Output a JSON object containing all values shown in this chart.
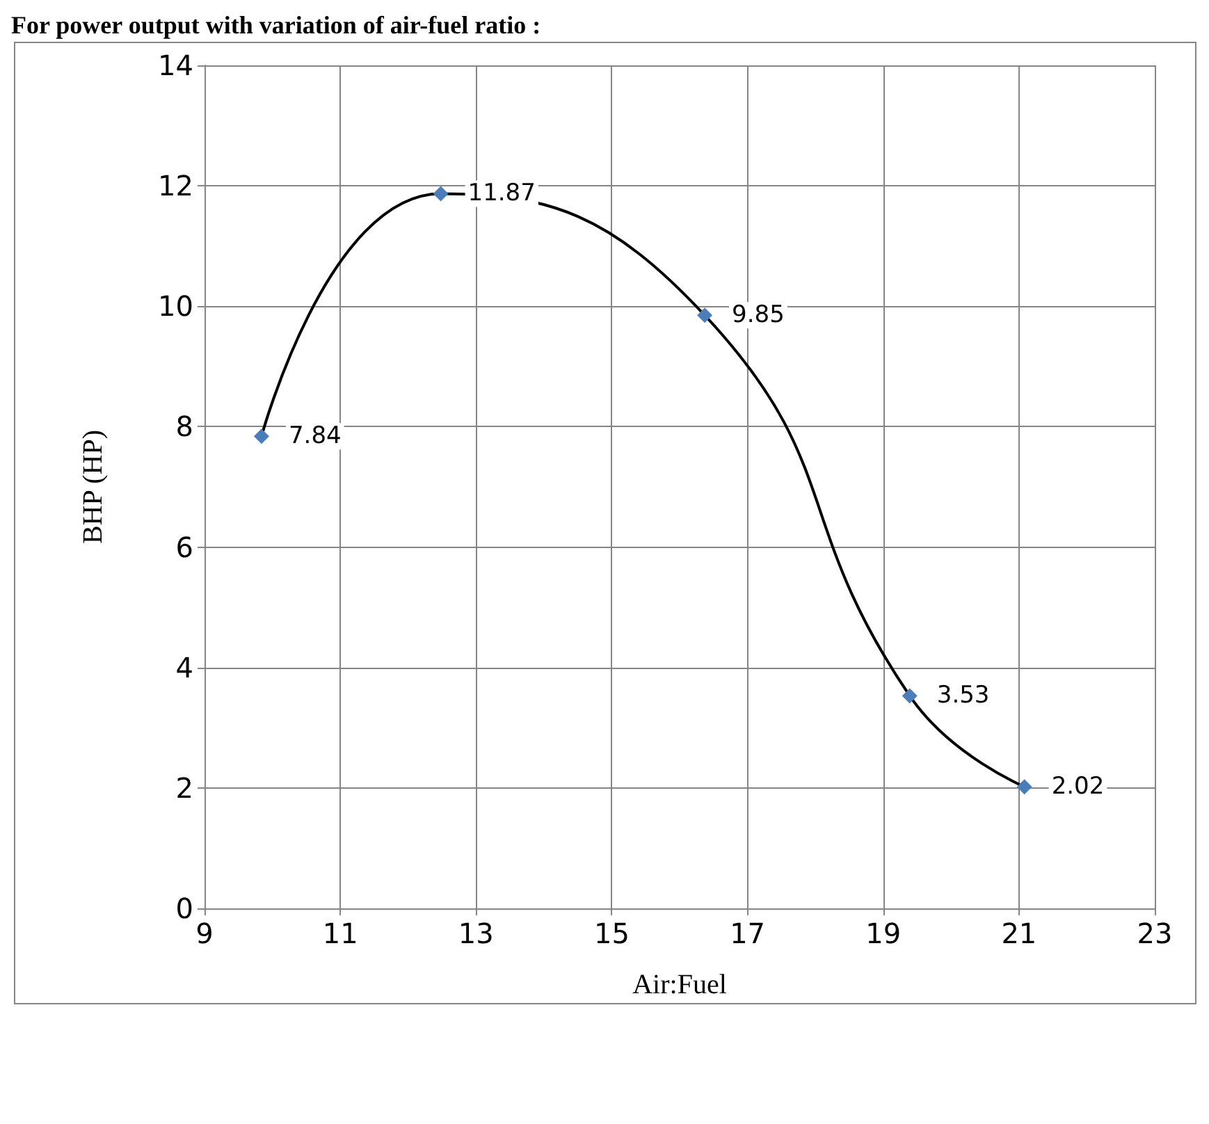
{
  "chart_data": {
    "type": "line",
    "title": "For power output with variation of air-fuel ratio :",
    "xlabel": "Air:Fuel",
    "ylabel": "BHP (HP)",
    "x": [
      9.84,
      12.48,
      16.37,
      19.39,
      21.08
    ],
    "series": [
      {
        "color": "#4a7ebb",
        "values": [
          7.84,
          11.87,
          9.85,
          3.53,
          2.02
        ]
      }
    ],
    "xlim": [
      9,
      23
    ],
    "xticks": [
      9,
      11,
      13,
      15,
      17,
      19,
      21,
      23
    ],
    "ylim": [
      0,
      14
    ],
    "yticks": [
      0,
      2,
      4,
      6,
      8,
      10,
      12,
      14
    ],
    "grid": true,
    "marker": "diamond",
    "line_style": "solid",
    "data_labels": true
  }
}
